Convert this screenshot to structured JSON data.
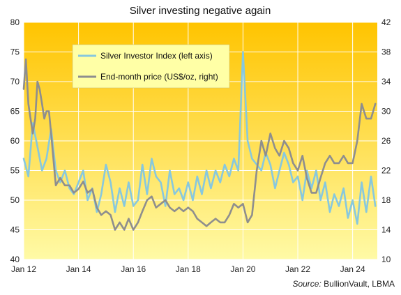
{
  "chart_data": {
    "type": "line",
    "title": "Silver investing negative again",
    "source_prefix": "Source:",
    "source_text": "BullionVault, LBMA",
    "grid": true,
    "legend_position": "top-left (inset)",
    "background": {
      "top": "#ffc400",
      "bottom": "#fffaa6"
    },
    "x_range": [
      2012.0,
      2024.9
    ],
    "x_ticks": [
      {
        "value": 2012,
        "label": "Jan 12"
      },
      {
        "value": 2014,
        "label": "Jan 14"
      },
      {
        "value": 2016,
        "label": "Jan 16"
      },
      {
        "value": 2018,
        "label": "Jan 18"
      },
      {
        "value": 2020,
        "label": "Jan 20"
      },
      {
        "value": 2022,
        "label": "Jan 22"
      },
      {
        "value": 2024,
        "label": "Jan 24"
      }
    ],
    "y_left": {
      "range": [
        40,
        80
      ],
      "ticks": [
        "40",
        "45",
        "50",
        "55",
        "60",
        "65",
        "70",
        "75",
        "80"
      ]
    },
    "y_right": {
      "range": [
        10,
        42
      ],
      "ticks": [
        "10",
        "14",
        "18",
        "22",
        "26",
        "30",
        "34",
        "38",
        "42"
      ]
    },
    "series": [
      {
        "name": "Silver Investor Index (left axis)",
        "axis": "left",
        "color": "#87c8de",
        "x": [
          2012.0,
          2012.17,
          2012.33,
          2012.5,
          2012.67,
          2012.83,
          2013.0,
          2013.17,
          2013.33,
          2013.5,
          2013.67,
          2013.83,
          2014.0,
          2014.17,
          2014.33,
          2014.5,
          2014.67,
          2014.83,
          2015.0,
          2015.17,
          2015.33,
          2015.5,
          2015.67,
          2015.83,
          2016.0,
          2016.17,
          2016.33,
          2016.5,
          2016.67,
          2016.83,
          2017.0,
          2017.17,
          2017.33,
          2017.5,
          2017.67,
          2017.83,
          2018.0,
          2018.17,
          2018.33,
          2018.5,
          2018.67,
          2018.83,
          2019.0,
          2019.17,
          2019.33,
          2019.5,
          2019.67,
          2019.83,
          2020.0,
          2020.17,
          2020.33,
          2020.5,
          2020.67,
          2020.83,
          2021.0,
          2021.17,
          2021.33,
          2021.5,
          2021.67,
          2021.83,
          2022.0,
          2022.17,
          2022.33,
          2022.5,
          2022.67,
          2022.83,
          2023.0,
          2023.17,
          2023.33,
          2023.5,
          2023.67,
          2023.83,
          2024.0,
          2024.17,
          2024.33,
          2024.5,
          2024.67,
          2024.83
        ],
        "values": [
          57,
          54,
          63,
          59,
          55,
          57,
          62,
          55,
          53,
          55,
          52,
          51,
          53,
          55,
          50,
          52,
          48,
          51,
          56,
          53,
          48,
          52,
          49,
          53,
          49,
          50,
          56,
          51,
          57,
          54,
          53,
          49,
          55,
          51,
          52,
          50,
          53,
          50,
          54,
          51,
          55,
          52,
          55,
          53,
          56,
          54,
          57,
          55,
          75,
          60,
          57,
          56,
          55,
          58,
          56,
          52,
          55,
          58,
          56,
          53,
          54,
          50,
          55,
          52,
          55,
          50,
          53,
          48,
          51,
          49,
          52,
          47,
          50,
          46,
          53,
          48,
          54,
          49
        ]
      },
      {
        "name": "End-month price (US$/oz, right)",
        "axis": "right",
        "color": "#8e8e8e",
        "x": [
          2012.0,
          2012.08,
          2012.17,
          2012.25,
          2012.33,
          2012.42,
          2012.5,
          2012.58,
          2012.67,
          2012.75,
          2012.83,
          2012.92,
          2013.0,
          2013.17,
          2013.33,
          2013.5,
          2013.67,
          2013.83,
          2014.0,
          2014.17,
          2014.33,
          2014.5,
          2014.67,
          2014.83,
          2015.0,
          2015.17,
          2015.33,
          2015.5,
          2015.67,
          2015.83,
          2016.0,
          2016.17,
          2016.33,
          2016.5,
          2016.67,
          2016.83,
          2017.0,
          2017.17,
          2017.33,
          2017.5,
          2017.67,
          2017.83,
          2018.0,
          2018.17,
          2018.33,
          2018.5,
          2018.67,
          2018.83,
          2019.0,
          2019.17,
          2019.33,
          2019.5,
          2019.67,
          2019.83,
          2020.0,
          2020.17,
          2020.33,
          2020.5,
          2020.67,
          2020.83,
          2021.0,
          2021.17,
          2021.33,
          2021.5,
          2021.67,
          2021.83,
          2022.0,
          2022.17,
          2022.33,
          2022.5,
          2022.67,
          2022.83,
          2023.0,
          2023.17,
          2023.33,
          2023.5,
          2023.67,
          2023.83,
          2024.0,
          2024.17,
          2024.33,
          2024.5,
          2024.67,
          2024.83
        ],
        "values": [
          33,
          37,
          31,
          29,
          27,
          29,
          34,
          33,
          31,
          29,
          30,
          30,
          27,
          20,
          21,
          20,
          20,
          19,
          19.5,
          20.5,
          19,
          19.5,
          17,
          16,
          16.5,
          16,
          14,
          15,
          14,
          15.5,
          14,
          15,
          16.5,
          18,
          18.5,
          17,
          17.5,
          18,
          17,
          16.5,
          17,
          16.5,
          17,
          16.5,
          15.5,
          15,
          14.5,
          15,
          15.5,
          15,
          15,
          16,
          17.5,
          17,
          17.5,
          15,
          16,
          22,
          26,
          24,
          27,
          25,
          24,
          26,
          25,
          23,
          22,
          24,
          21,
          19,
          19,
          21,
          23,
          24,
          23,
          23,
          24,
          23,
          23,
          26,
          31,
          29,
          29,
          31
        ]
      }
    ]
  }
}
